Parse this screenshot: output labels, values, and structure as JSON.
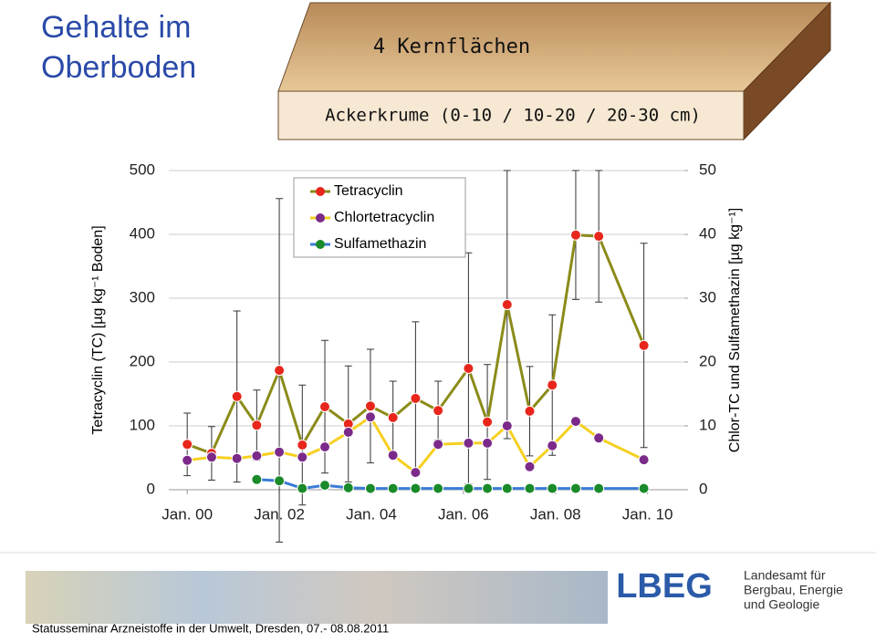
{
  "header": {
    "title_line1": "Gehalte im",
    "title_line2": "Oberboden",
    "box_title": "4 Kernflächen",
    "box_subtitle": "Ackerkrume  (0-10 / 10-20 / 20-30 cm)"
  },
  "chart_data": {
    "type": "line",
    "y_label": "Tetracyclin (TC) [µg kg⁻¹ Boden]",
    "y2_label": "Chlor-TC und Sulfamethazin [µg kg⁻¹]",
    "x": [
      0,
      0.53,
      1.08,
      1.51,
      2.0,
      2.5,
      2.99,
      3.5,
      3.98,
      4.47,
      4.96,
      5.45,
      6.11,
      6.52,
      6.95,
      7.44,
      7.93,
      8.44,
      8.94,
      9.92
    ],
    "xlim": [
      -0.4,
      10.8
    ],
    "xticks": [
      {
        "value": 0,
        "label": "Jan. 00"
      },
      {
        "value": 2,
        "label": "Jan. 02"
      },
      {
        "value": 4,
        "label": "Jan. 04"
      },
      {
        "value": 6,
        "label": "Jan. 06"
      },
      {
        "value": 8,
        "label": "Jan. 08"
      },
      {
        "value": 10,
        "label": "Jan. 10"
      }
    ],
    "ylim": [
      0,
      500
    ],
    "yticks": [
      0,
      100,
      200,
      300,
      400,
      500
    ],
    "y2lim": [
      0,
      50
    ],
    "y2ticks": [
      0,
      10,
      20,
      30,
      40,
      50
    ],
    "grid": true,
    "series": [
      {
        "name": "Tetracyclin",
        "color": "#8b8b1a",
        "marker_color": "#e8261c",
        "values": [
          71,
          57,
          146,
          101,
          187,
          70,
          130,
          103,
          131,
          113,
          143,
          124,
          190,
          106,
          290,
          123,
          164,
          399,
          397,
          226
        ],
        "errors": [
          49,
          42,
          134,
          55,
          269,
          94,
          104,
          91,
          89,
          57,
          120,
          46,
          181,
          90,
          210,
          70,
          110,
          101,
          103,
          160
        ]
      },
      {
        "name": "Chlortetracyclin",
        "color": "#f5d020",
        "marker_color": "#7b2a8a",
        "axis": "y2",
        "values": [
          4.6,
          5.1,
          4.9,
          5.3,
          5.9,
          5.1,
          6.7,
          9.0,
          11.4,
          5.4,
          2.7,
          7.1,
          7.3,
          7.3,
          10.0,
          3.6,
          6.9,
          10.7,
          8.1,
          4.7
        ]
      },
      {
        "name": "Sulfamethazin",
        "color": "#3a7bd5",
        "marker_color": "#1a8a2a",
        "axis": "y2",
        "values": [
          null,
          null,
          null,
          1.6,
          1.4,
          0.2,
          0.7,
          0.3,
          0.2,
          0.2,
          0.2,
          0.2,
          0.2,
          0.2,
          0.2,
          0.2,
          0.2,
          0.2,
          0.2,
          0.2
        ]
      }
    ]
  },
  "footer": {
    "text": "Statusseminar Arzneistoffe in der Umwelt, Dresden, 07.- 08.08.2011",
    "logo": "LBEG",
    "org_line1": "Landesamt für",
    "org_line2": "Bergbau, Energie",
    "org_line3": "und Geologie"
  }
}
